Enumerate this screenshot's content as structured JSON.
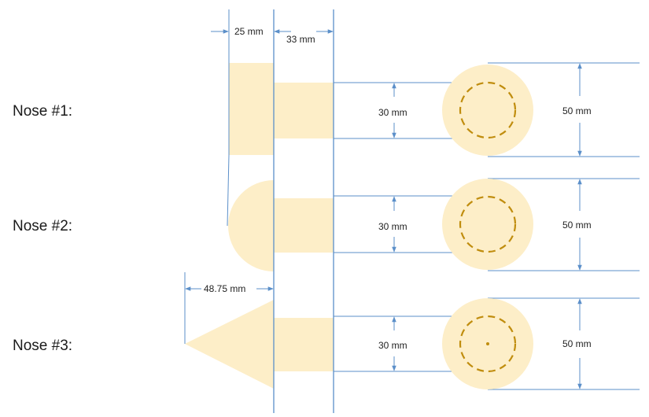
{
  "colors": {
    "fill": "#fdeec8",
    "line": "#5b8fc9",
    "dash": "#c08d0e",
    "text": "#222222"
  },
  "dimensions": {
    "base_width": "25 mm",
    "cylinder_length": "33 mm",
    "cone_length": "48.75 mm"
  },
  "noses": [
    {
      "label": "Nose #1:",
      "shape": "flat",
      "inner_diameter": "30 mm",
      "outer_diameter": "50 mm"
    },
    {
      "label": "Nose #2:",
      "shape": "hemisphere",
      "inner_diameter": "30 mm",
      "outer_diameter": "50 mm"
    },
    {
      "label": "Nose #3:",
      "shape": "cone",
      "inner_diameter": "30 mm",
      "outer_diameter": "50 mm"
    }
  ]
}
